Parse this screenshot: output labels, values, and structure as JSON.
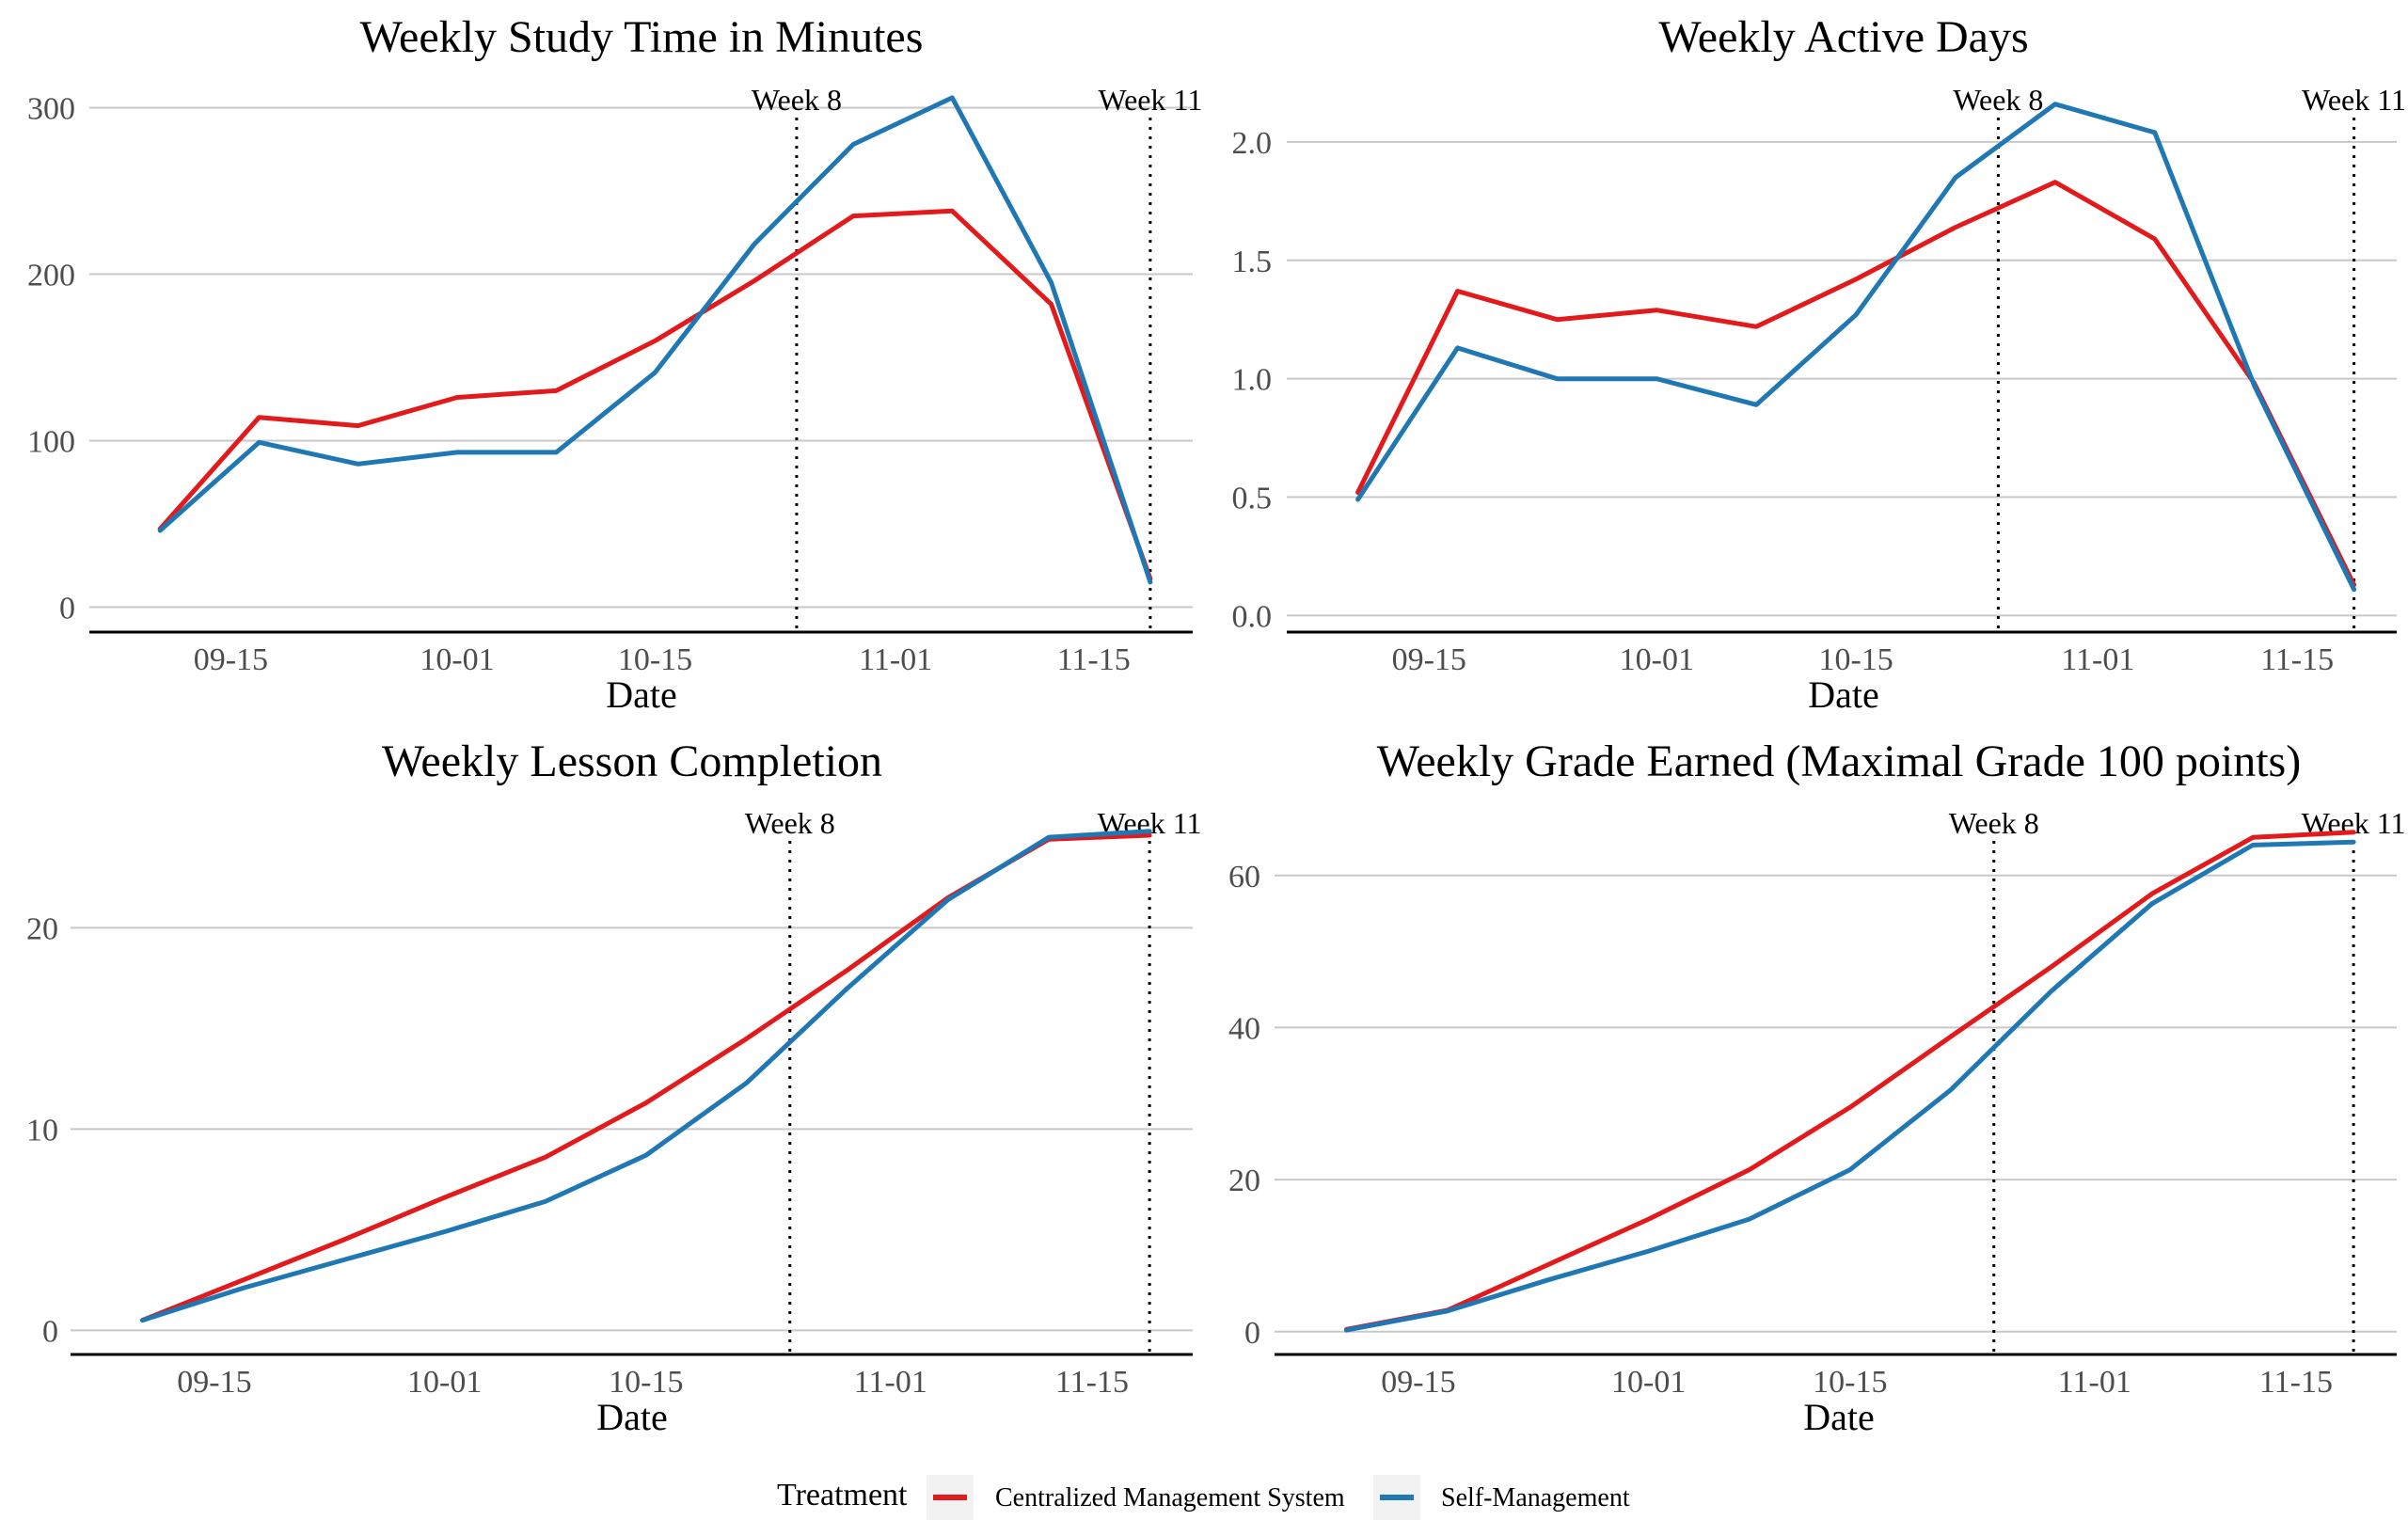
{
  "chart_data": [
    {
      "type": "line",
      "title": "Weekly Study Time in Minutes",
      "xlabel": "Date",
      "ylabel": "",
      "x": [
        "09-10",
        "09-17",
        "09-24",
        "10-01",
        "10-08",
        "10-15",
        "10-22",
        "10-29",
        "11-05",
        "11-12",
        "11-19"
      ],
      "x_ticks": [
        "09-15",
        "10-01",
        "10-15",
        "11-01",
        "11-15"
      ],
      "y_ticks": [
        0,
        100,
        200,
        300
      ],
      "ylim": [
        -15,
        315
      ],
      "vlines": [
        {
          "x": "10-25",
          "label": "Week 8"
        },
        {
          "x": "11-19",
          "label": "Week 11"
        }
      ],
      "series": [
        {
          "name": "Centralized Management System",
          "color": "#e31a1c",
          "values": [
            47,
            114,
            109,
            126,
            130,
            160,
            196,
            235,
            238,
            182,
            17
          ]
        },
        {
          "name": "Self-Management",
          "color": "#1f78b4",
          "values": [
            46,
            99,
            86,
            93,
            93,
            141,
            218,
            278,
            306,
            195,
            15
          ]
        }
      ],
      "grid": true
    },
    {
      "type": "line",
      "title": "Weekly Active Days",
      "xlabel": "Date",
      "ylabel": "",
      "x": [
        "09-10",
        "09-17",
        "09-24",
        "10-01",
        "10-08",
        "10-15",
        "10-22",
        "10-29",
        "11-05",
        "11-12",
        "11-19"
      ],
      "x_ticks": [
        "09-15",
        "10-01",
        "10-15",
        "11-01",
        "11-15"
      ],
      "y_ticks": [
        0.0,
        0.5,
        1.0,
        1.5,
        2.0
      ],
      "y_tick_labels": [
        "0.0",
        "0.5",
        "1.0",
        "1.5",
        "2.0"
      ],
      "ylim": [
        -0.07,
        2.25
      ],
      "vlines": [
        {
          "x": "10-25",
          "label": "Week 8"
        },
        {
          "x": "11-19",
          "label": "Week 11"
        }
      ],
      "series": [
        {
          "name": "Centralized Management System",
          "color": "#e31a1c",
          "values": [
            0.52,
            1.37,
            1.25,
            1.29,
            1.22,
            1.42,
            1.64,
            1.83,
            1.59,
            0.98,
            0.13
          ]
        },
        {
          "name": "Self-Management",
          "color": "#1f78b4",
          "values": [
            0.49,
            1.13,
            1.0,
            1.0,
            0.89,
            1.27,
            1.85,
            2.16,
            2.04,
            0.97,
            0.11
          ]
        }
      ],
      "grid": true
    },
    {
      "type": "line",
      "title": "Weekly Lesson Completion",
      "xlabel": "Date",
      "ylabel": "",
      "x": [
        "09-10",
        "09-17",
        "09-24",
        "10-01",
        "10-08",
        "10-15",
        "10-22",
        "10-29",
        "11-05",
        "11-12",
        "11-19"
      ],
      "x_ticks": [
        "09-15",
        "10-01",
        "10-15",
        "11-01",
        "11-15"
      ],
      "y_ticks": [
        0,
        10,
        20
      ],
      "ylim": [
        -1.2,
        26
      ],
      "vlines": [
        {
          "x": "10-25",
          "label": "Week 8"
        },
        {
          "x": "11-19",
          "label": "Week 11"
        }
      ],
      "series": [
        {
          "name": "Centralized Management System",
          "color": "#e31a1c",
          "values": [
            0.5,
            2.5,
            4.5,
            6.6,
            8.6,
            11.3,
            14.5,
            17.9,
            21.5,
            24.4,
            24.6
          ]
        },
        {
          "name": "Self-Management",
          "color": "#1f78b4",
          "values": [
            0.5,
            2.1,
            3.5,
            4.9,
            6.4,
            8.7,
            12.3,
            17.0,
            21.4,
            24.5,
            24.8
          ]
        }
      ],
      "grid": true
    },
    {
      "type": "line",
      "title": "Weekly Grade Earned (Maximal Grade 100 points)",
      "xlabel": "Date",
      "ylabel": "",
      "x": [
        "09-10",
        "09-17",
        "09-24",
        "10-01",
        "10-08",
        "10-15",
        "10-22",
        "10-29",
        "11-05",
        "11-12",
        "11-19"
      ],
      "x_ticks": [
        "09-15",
        "10-01",
        "10-15",
        "11-01",
        "11-15"
      ],
      "y_ticks": [
        0,
        20,
        40,
        60
      ],
      "ylim": [
        -3,
        69
      ],
      "vlines": [
        {
          "x": "10-25",
          "label": "Week 8"
        },
        {
          "x": "11-19",
          "label": "Week 11"
        }
      ],
      "series": [
        {
          "name": "Centralized Management System",
          "color": "#e31a1c",
          "values": [
            0.3,
            2.8,
            8.8,
            14.8,
            21.3,
            29.5,
            38.8,
            48.0,
            57.6,
            65.0,
            65.7
          ]
        },
        {
          "name": "Self-Management",
          "color": "#1f78b4",
          "values": [
            0.2,
            2.7,
            6.8,
            10.6,
            14.8,
            21.3,
            31.8,
            44.8,
            56.3,
            64.0,
            64.4
          ]
        }
      ],
      "grid": true
    }
  ],
  "legend": {
    "title": "Treatment",
    "placement": "bottom",
    "items": [
      {
        "label": "Centralized Management System",
        "color": "#e31a1c"
      },
      {
        "label": "Self-Management",
        "color": "#1f78b4"
      }
    ]
  }
}
